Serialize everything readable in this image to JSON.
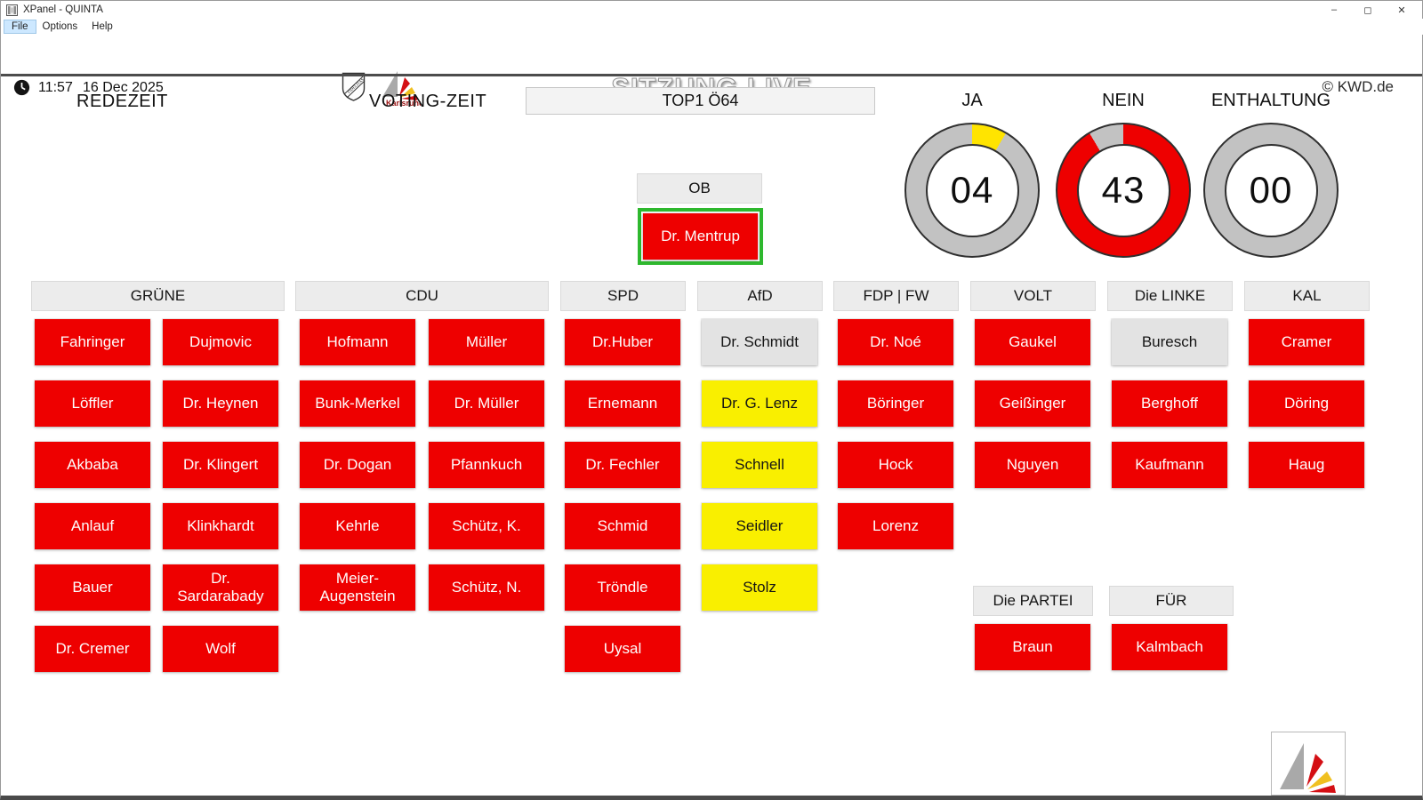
{
  "window": {
    "title": "XPanel - QUINTA",
    "menu": [
      {
        "label": "File",
        "active": true
      },
      {
        "label": "Options",
        "active": false
      },
      {
        "label": "Help",
        "active": false
      }
    ],
    "controls": {
      "minimize": "–",
      "maximize": "◻",
      "close": "✕"
    }
  },
  "header": {
    "time": "11:57",
    "date": "16 Dec 2025",
    "session_title": "SITZUNG LIVE",
    "copyright": "© KWD.de",
    "city_logo_text": "Karlsruhe"
  },
  "toolbar": {
    "redezeit": "REDEZEIT",
    "voting": "VOTING-ZEIT",
    "top_item": "TOP1 Ö64"
  },
  "gauges": {
    "total": 47,
    "items": [
      {
        "label": "JA",
        "display": "04",
        "value": 4,
        "color": "#ffe400"
      },
      {
        "label": "NEIN",
        "display": "43",
        "value": 43,
        "color": "#ee0000"
      },
      {
        "label": "ENTHALTUNG",
        "display": "00",
        "value": 0,
        "color": "#c2c2c2"
      }
    ]
  },
  "ob": {
    "label": "OB",
    "member": {
      "label": "Dr. Mentrup",
      "status": "red",
      "selected": true
    }
  },
  "parties": [
    {
      "name": "GRÜNE",
      "columns": [
        [
          {
            "label": "Fahringer",
            "status": "red"
          },
          {
            "label": "Löffler",
            "status": "red"
          },
          {
            "label": "Akbaba",
            "status": "red"
          },
          {
            "label": "Anlauf",
            "status": "red"
          },
          {
            "label": "Bauer",
            "status": "red"
          },
          {
            "label": "Dr. Cremer",
            "status": "red"
          }
        ],
        [
          {
            "label": "Dujmovic",
            "status": "red"
          },
          {
            "label": "Dr. Heynen",
            "status": "red"
          },
          {
            "label": "Dr. Klingert",
            "status": "red"
          },
          {
            "label": "Klinkhardt",
            "status": "red"
          },
          {
            "label": "Dr. Sardarabady",
            "status": "red"
          },
          {
            "label": "Wolf",
            "status": "red"
          }
        ]
      ]
    },
    {
      "name": "CDU",
      "columns": [
        [
          {
            "label": "Hofmann",
            "status": "red"
          },
          {
            "label": "Bunk-Merkel",
            "status": "red"
          },
          {
            "label": "Dr. Dogan",
            "status": "red"
          },
          {
            "label": "Kehrle",
            "status": "red"
          },
          {
            "label": "Meier-Augenstein",
            "status": "red"
          }
        ],
        [
          {
            "label": "Müller",
            "status": "red"
          },
          {
            "label": "Dr. Müller",
            "status": "red"
          },
          {
            "label": "Pfannkuch",
            "status": "red"
          },
          {
            "label": "Schütz, K.",
            "status": "red"
          },
          {
            "label": "Schütz, N.",
            "status": "red"
          }
        ]
      ]
    },
    {
      "name": "SPD",
      "columns": [
        [
          {
            "label": "Dr.Huber",
            "status": "red"
          },
          {
            "label": "Ernemann",
            "status": "red"
          },
          {
            "label": "Dr. Fechler",
            "status": "red"
          },
          {
            "label": "Schmid",
            "status": "red"
          },
          {
            "label": "Tröndle",
            "status": "red"
          },
          {
            "label": "Uysal",
            "status": "red"
          }
        ]
      ]
    },
    {
      "name": "AfD",
      "columns": [
        [
          {
            "label": "Dr. Schmidt",
            "status": "gray"
          },
          {
            "label": "Dr. G. Lenz",
            "status": "yellow"
          },
          {
            "label": "Schnell",
            "status": "yellow"
          },
          {
            "label": "Seidler",
            "status": "yellow"
          },
          {
            "label": "Stolz",
            "status": "yellow"
          }
        ]
      ]
    },
    {
      "name": "FDP | FW",
      "columns": [
        [
          {
            "label": "Dr. Noé",
            "status": "red"
          },
          {
            "label": "Böringer",
            "status": "red"
          },
          {
            "label": "Hock",
            "status": "red"
          },
          {
            "label": "Lorenz",
            "status": "red"
          }
        ]
      ]
    },
    {
      "name": "VOLT",
      "columns": [
        [
          {
            "label": "Gaukel",
            "status": "red"
          },
          {
            "label": "Geißinger",
            "status": "red"
          },
          {
            "label": "Nguyen",
            "status": "red"
          }
        ]
      ]
    },
    {
      "name": "Die LINKE",
      "columns": [
        [
          {
            "label": "Buresch",
            "status": "gray"
          },
          {
            "label": "Berghoff",
            "status": "red"
          },
          {
            "label": "Kaufmann",
            "status": "red"
          }
        ]
      ]
    },
    {
      "name": "KAL",
      "columns": [
        [
          {
            "label": "Cramer",
            "status": "red"
          },
          {
            "label": "Döring",
            "status": "red"
          },
          {
            "label": "Haug",
            "status": "red"
          }
        ]
      ]
    },
    {
      "name": "Die PARTEI",
      "columns": [
        [
          {
            "label": "Braun",
            "status": "red"
          }
        ]
      ]
    },
    {
      "name": "FÜR",
      "columns": [
        [
          {
            "label": "Kalmbach",
            "status": "red"
          }
        ]
      ]
    }
  ],
  "colors": {
    "red": "#ee0000",
    "yellow": "#f9ef00",
    "gray": "#e3e3e3",
    "ring": "#c2c2c2",
    "selected": "#2eb82e",
    "accent_city_text": "#9b1313"
  }
}
